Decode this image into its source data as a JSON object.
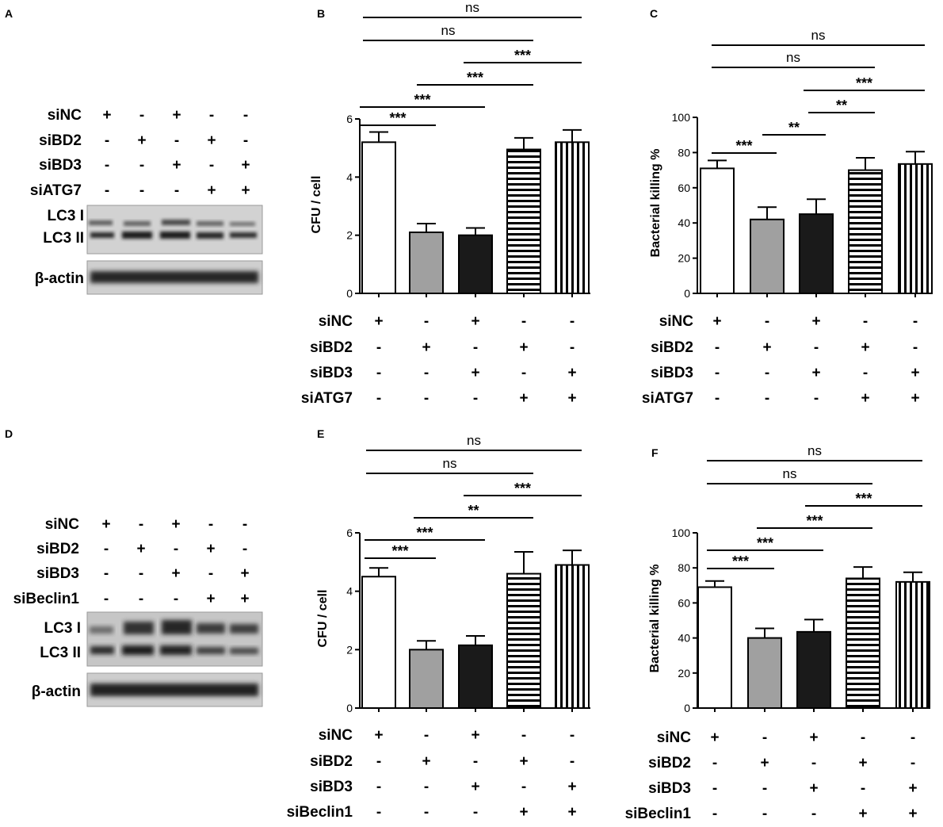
{
  "panels": {
    "A": {
      "letter": "A",
      "rows": [
        {
          "label": "siNC",
          "signs": [
            "+",
            "-",
            "+",
            "-",
            "-"
          ]
        },
        {
          "label": "siBD2",
          "signs": [
            "-",
            "+",
            "-",
            "+",
            "-"
          ]
        },
        {
          "label": "siBD3",
          "signs": [
            "-",
            "-",
            "+",
            "-",
            "+"
          ]
        },
        {
          "label": "siATG7",
          "signs": [
            "-",
            "-",
            "-",
            "+",
            "+"
          ]
        }
      ],
      "blot_labels": {
        "lc3i": "LC3 I",
        "lc3ii": "LC3 II",
        "actin": "β-actin"
      }
    },
    "D": {
      "letter": "D",
      "rows": [
        {
          "label": "siNC",
          "signs": [
            "+",
            "-",
            "+",
            "-",
            "-"
          ]
        },
        {
          "label": "siBD2",
          "signs": [
            "-",
            "+",
            "-",
            "+",
            "-"
          ]
        },
        {
          "label": "siBD3",
          "signs": [
            "-",
            "-",
            "+",
            "-",
            "+"
          ]
        },
        {
          "label": "siBeclin1",
          "signs": [
            "-",
            "-",
            "-",
            "+",
            "+"
          ]
        }
      ],
      "blot_labels": {
        "lc3i": "LC3 I",
        "lc3ii": "LC3 II",
        "actin": "β-actin"
      }
    }
  },
  "chart_data": [
    {
      "panel": "B",
      "type": "bar",
      "ylabel": "CFU / cell",
      "ylim": [
        0,
        6
      ],
      "yticks": [
        0,
        2,
        4,
        6
      ],
      "values": [
        5.2,
        2.1,
        2.0,
        4.95,
        5.2
      ],
      "errors": [
        0.35,
        0.3,
        0.25,
        0.4,
        0.42
      ],
      "patterns": [
        "white",
        "gray",
        "black",
        "hlines",
        "vlines"
      ],
      "comparisons": [
        {
          "from": 0,
          "to": 1,
          "label": "***"
        },
        {
          "from": 0,
          "to": 2,
          "label": "***"
        },
        {
          "from": 1,
          "to": 3,
          "label": "***"
        },
        {
          "from": 2,
          "to": 4,
          "label": "***"
        },
        {
          "from": 0,
          "to": 3,
          "label": "ns"
        },
        {
          "from": 0,
          "to": 4,
          "label": "ns"
        }
      ],
      "conditions": [
        {
          "label": "siNC",
          "signs": [
            "+",
            "-",
            "+",
            "-",
            "-"
          ]
        },
        {
          "label": "siBD2",
          "signs": [
            "-",
            "+",
            "-",
            "+",
            "-"
          ]
        },
        {
          "label": "siBD3",
          "signs": [
            "-",
            "-",
            "+",
            "-",
            "+"
          ]
        },
        {
          "label": "siATG7",
          "signs": [
            "-",
            "-",
            "-",
            "+",
            "+"
          ]
        }
      ]
    },
    {
      "panel": "C",
      "type": "bar",
      "ylabel": "Bacterial killing %",
      "ylim": [
        0,
        100
      ],
      "yticks": [
        0,
        20,
        40,
        60,
        80,
        100
      ],
      "values": [
        71,
        42,
        45,
        70,
        73.5
      ],
      "errors": [
        4.5,
        7,
        8.5,
        7,
        7
      ],
      "patterns": [
        "white",
        "gray",
        "black",
        "hlines",
        "vlines"
      ],
      "comparisons": [
        {
          "from": 0,
          "to": 1,
          "label": "***"
        },
        {
          "from": 1,
          "to": 2,
          "label": "**"
        },
        {
          "from": 1,
          "to": 3,
          "label": "**"
        },
        {
          "from": 2,
          "to": 4,
          "label": "***"
        },
        {
          "from": 0,
          "to": 3,
          "label": "ns"
        },
        {
          "from": 0,
          "to": 4,
          "label": "ns"
        }
      ],
      "conditions": [
        {
          "label": "siNC",
          "signs": [
            "+",
            "-",
            "+",
            "-",
            "-"
          ]
        },
        {
          "label": "siBD2",
          "signs": [
            "-",
            "+",
            "-",
            "+",
            "-"
          ]
        },
        {
          "label": "siBD3",
          "signs": [
            "-",
            "-",
            "+",
            "-",
            "+"
          ]
        },
        {
          "label": "siATG7",
          "signs": [
            "-",
            "-",
            "-",
            "+",
            "+"
          ]
        }
      ]
    },
    {
      "panel": "E",
      "type": "bar",
      "ylabel": "CFU / cell",
      "ylim": [
        0,
        6
      ],
      "yticks": [
        0,
        2,
        4,
        6
      ],
      "values": [
        4.5,
        2.0,
        2.15,
        4.6,
        4.9
      ],
      "errors": [
        0.3,
        0.3,
        0.32,
        0.75,
        0.5
      ],
      "patterns": [
        "white",
        "gray",
        "black",
        "hlines",
        "vlines"
      ],
      "comparisons": [
        {
          "from": 0,
          "to": 1,
          "label": "***"
        },
        {
          "from": 0,
          "to": 2,
          "label": "***"
        },
        {
          "from": 1,
          "to": 3,
          "label": "**"
        },
        {
          "from": 2,
          "to": 4,
          "label": "***"
        },
        {
          "from": 0,
          "to": 3,
          "label": "ns"
        },
        {
          "from": 0,
          "to": 4,
          "label": "ns"
        }
      ],
      "conditions": [
        {
          "label": "siNC",
          "signs": [
            "+",
            "-",
            "+",
            "-",
            "-"
          ]
        },
        {
          "label": "siBD2",
          "signs": [
            "-",
            "+",
            "-",
            "+",
            "-"
          ]
        },
        {
          "label": "siBD3",
          "signs": [
            "-",
            "-",
            "+",
            "-",
            "+"
          ]
        },
        {
          "label": "siBeclin1",
          "signs": [
            "-",
            "-",
            "-",
            "+",
            "+"
          ]
        }
      ]
    },
    {
      "panel": "F",
      "type": "bar",
      "ylabel": "Bacterial killing %",
      "ylim": [
        0,
        100
      ],
      "yticks": [
        0,
        20,
        40,
        60,
        80,
        100
      ],
      "values": [
        69,
        40,
        43.5,
        74,
        72
      ],
      "errors": [
        3.5,
        5.5,
        7,
        6.5,
        5.5
      ],
      "patterns": [
        "white",
        "gray",
        "black",
        "hlines",
        "vlines"
      ],
      "comparisons": [
        {
          "from": 0,
          "to": 1,
          "label": "***"
        },
        {
          "from": 0,
          "to": 2,
          "label": "***"
        },
        {
          "from": 1,
          "to": 3,
          "label": "***"
        },
        {
          "from": 2,
          "to": 4,
          "label": "***"
        },
        {
          "from": 0,
          "to": 3,
          "label": "ns"
        },
        {
          "from": 0,
          "to": 4,
          "label": "ns"
        }
      ],
      "conditions": [
        {
          "label": "siNC",
          "signs": [
            "+",
            "-",
            "+",
            "-",
            "-"
          ]
        },
        {
          "label": "siBD2",
          "signs": [
            "-",
            "+",
            "-",
            "+",
            "-"
          ]
        },
        {
          "label": "siBD3",
          "signs": [
            "-",
            "-",
            "+",
            "-",
            "+"
          ]
        },
        {
          "label": "siBeclin1",
          "signs": [
            "-",
            "-",
            "-",
            "+",
            "+"
          ]
        }
      ]
    }
  ]
}
